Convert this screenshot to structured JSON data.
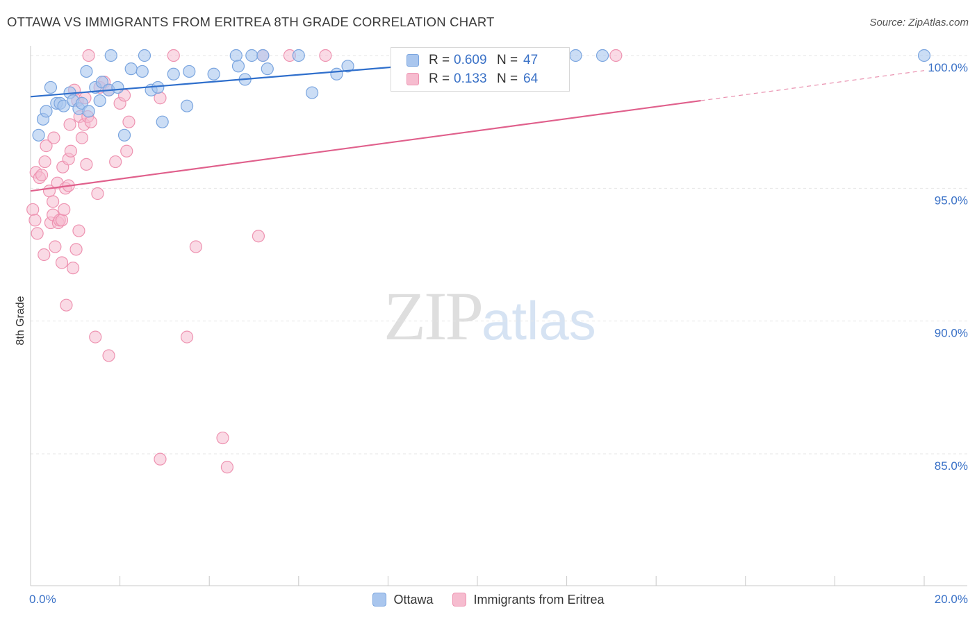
{
  "header": {
    "title": "OTTAWA VS IMMIGRANTS FROM ERITREA 8TH GRADE CORRELATION CHART",
    "source": "Source: ZipAtlas.com"
  },
  "watermark": {
    "zip": "ZIP",
    "atlas": "atlas"
  },
  "legend": {
    "rows": [
      {
        "r_label": "R =",
        "r_value": "0.609",
        "n_label": "N =",
        "n_value": "47"
      },
      {
        "r_label": "R =",
        "r_value": "0.133",
        "n_label": "N =",
        "n_value": "64"
      }
    ]
  },
  "bottom_legend": {
    "ottawa": "Ottawa",
    "eritrea": "Immigrants from Eritrea"
  },
  "colors": {
    "ottawa_fill": "#a9c6ee",
    "ottawa_stroke": "#7aa5df",
    "ottawa_line": "#2f6fcc",
    "eritrea_fill": "#f6bccf",
    "eritrea_stroke": "#ee93b1",
    "eritrea_line": "#e0608c",
    "tick_label": "#3b72c7",
    "grid": "#e6e6e6"
  },
  "chart_data": {
    "type": "scatter",
    "title": "OTTAWA VS IMMIGRANTS FROM ERITREA 8TH GRADE CORRELATION CHART",
    "xlabel": "",
    "ylabel": "8th Grade",
    "xlim": [
      0,
      20
    ],
    "ylim": [
      80.5,
      100.8
    ],
    "x_tick_labels": [
      {
        "x": 0,
        "label": "0.0%"
      },
      {
        "x": 20,
        "label": "20.0%"
      }
    ],
    "y_tick_labels": [
      {
        "y": 100,
        "label": "100.0%"
      },
      {
        "y": 95,
        "label": "95.0%"
      },
      {
        "y": 90,
        "label": "90.0%"
      },
      {
        "y": 85,
        "label": "85.0%"
      }
    ],
    "grid": true,
    "legend_position": "top-center",
    "series": [
      {
        "name": "Ottawa",
        "r": 0.609,
        "n": 47,
        "trend": {
          "x0": 0,
          "y0": 98.45,
          "x1": 12.0,
          "y1": 100.1,
          "dashed_to_x": null
        },
        "points": [
          [
            0.18,
            97.0
          ],
          [
            0.28,
            97.6
          ],
          [
            0.35,
            97.9
          ],
          [
            0.45,
            98.8
          ],
          [
            0.58,
            98.2
          ],
          [
            0.66,
            98.2
          ],
          [
            0.74,
            98.1
          ],
          [
            0.88,
            98.6
          ],
          [
            0.95,
            98.3
          ],
          [
            1.08,
            98.0
          ],
          [
            1.15,
            98.2
          ],
          [
            1.25,
            99.4
          ],
          [
            1.3,
            97.9
          ],
          [
            1.45,
            98.8
          ],
          [
            1.55,
            98.3
          ],
          [
            1.6,
            99.0
          ],
          [
            1.75,
            98.7
          ],
          [
            1.8,
            100.0
          ],
          [
            1.95,
            98.8
          ],
          [
            2.1,
            97.0
          ],
          [
            2.25,
            99.5
          ],
          [
            2.5,
            99.4
          ],
          [
            2.55,
            100.0
          ],
          [
            2.7,
            98.7
          ],
          [
            2.85,
            98.8
          ],
          [
            2.95,
            97.5
          ],
          [
            3.2,
            99.3
          ],
          [
            3.5,
            98.1
          ],
          [
            3.55,
            99.4
          ],
          [
            4.1,
            99.3
          ],
          [
            4.6,
            100.0
          ],
          [
            4.65,
            99.6
          ],
          [
            4.8,
            99.1
          ],
          [
            4.95,
            100.0
          ],
          [
            5.2,
            100.0
          ],
          [
            5.3,
            99.5
          ],
          [
            6.0,
            100.0
          ],
          [
            6.3,
            98.6
          ],
          [
            6.85,
            99.3
          ],
          [
            7.1,
            99.6
          ],
          [
            8.2,
            100.0
          ],
          [
            9.3,
            100.0
          ],
          [
            9.5,
            99.2
          ],
          [
            11.4,
            100.0
          ],
          [
            12.2,
            100.0
          ],
          [
            12.8,
            100.0
          ],
          [
            20.0,
            100.0
          ]
        ]
      },
      {
        "name": "Immigrants from Eritrea",
        "r": 0.133,
        "n": 64,
        "trend": {
          "x0": 0,
          "y0": 94.9,
          "x1": 15.0,
          "y1": 98.3,
          "dashed_to_x": 20.0
        },
        "points": [
          [
            0.05,
            94.2
          ],
          [
            0.1,
            93.8
          ],
          [
            0.12,
            95.6
          ],
          [
            0.15,
            93.3
          ],
          [
            0.2,
            95.4
          ],
          [
            0.25,
            95.5
          ],
          [
            0.3,
            92.5
          ],
          [
            0.32,
            96.0
          ],
          [
            0.35,
            96.6
          ],
          [
            0.42,
            94.9
          ],
          [
            0.45,
            93.7
          ],
          [
            0.5,
            94.0
          ],
          [
            0.5,
            94.5
          ],
          [
            0.52,
            96.9
          ],
          [
            0.55,
            92.8
          ],
          [
            0.6,
            95.2
          ],
          [
            0.62,
            93.7
          ],
          [
            0.65,
            93.8
          ],
          [
            0.7,
            92.2
          ],
          [
            0.7,
            93.8
          ],
          [
            0.72,
            95.8
          ],
          [
            0.75,
            94.2
          ],
          [
            0.78,
            95.0
          ],
          [
            0.8,
            90.6
          ],
          [
            0.85,
            96.1
          ],
          [
            0.85,
            95.1
          ],
          [
            0.88,
            97.4
          ],
          [
            0.9,
            96.4
          ],
          [
            0.95,
            92.0
          ],
          [
            0.98,
            98.7
          ],
          [
            1.02,
            92.7
          ],
          [
            1.05,
            98.3
          ],
          [
            1.08,
            93.4
          ],
          [
            1.1,
            97.7
          ],
          [
            1.15,
            96.9
          ],
          [
            1.2,
            97.4
          ],
          [
            1.22,
            98.4
          ],
          [
            1.25,
            95.9
          ],
          [
            1.28,
            97.7
          ],
          [
            1.3,
            100.0
          ],
          [
            1.35,
            97.5
          ],
          [
            1.45,
            89.4
          ],
          [
            1.5,
            94.8
          ],
          [
            1.55,
            98.8
          ],
          [
            1.65,
            99.0
          ],
          [
            1.75,
            88.7
          ],
          [
            1.75,
            98.7
          ],
          [
            1.9,
            96.0
          ],
          [
            2.0,
            98.2
          ],
          [
            2.1,
            98.5
          ],
          [
            2.15,
            96.4
          ],
          [
            2.2,
            97.5
          ],
          [
            2.9,
            98.4
          ],
          [
            2.9,
            84.8
          ],
          [
            3.2,
            100.0
          ],
          [
            3.5,
            89.4
          ],
          [
            3.7,
            92.8
          ],
          [
            4.3,
            85.6
          ],
          [
            4.4,
            84.5
          ],
          [
            5.1,
            93.2
          ],
          [
            5.2,
            100.0
          ],
          [
            5.8,
            100.0
          ],
          [
            6.6,
            100.0
          ],
          [
            13.1,
            100.0
          ]
        ]
      }
    ]
  }
}
